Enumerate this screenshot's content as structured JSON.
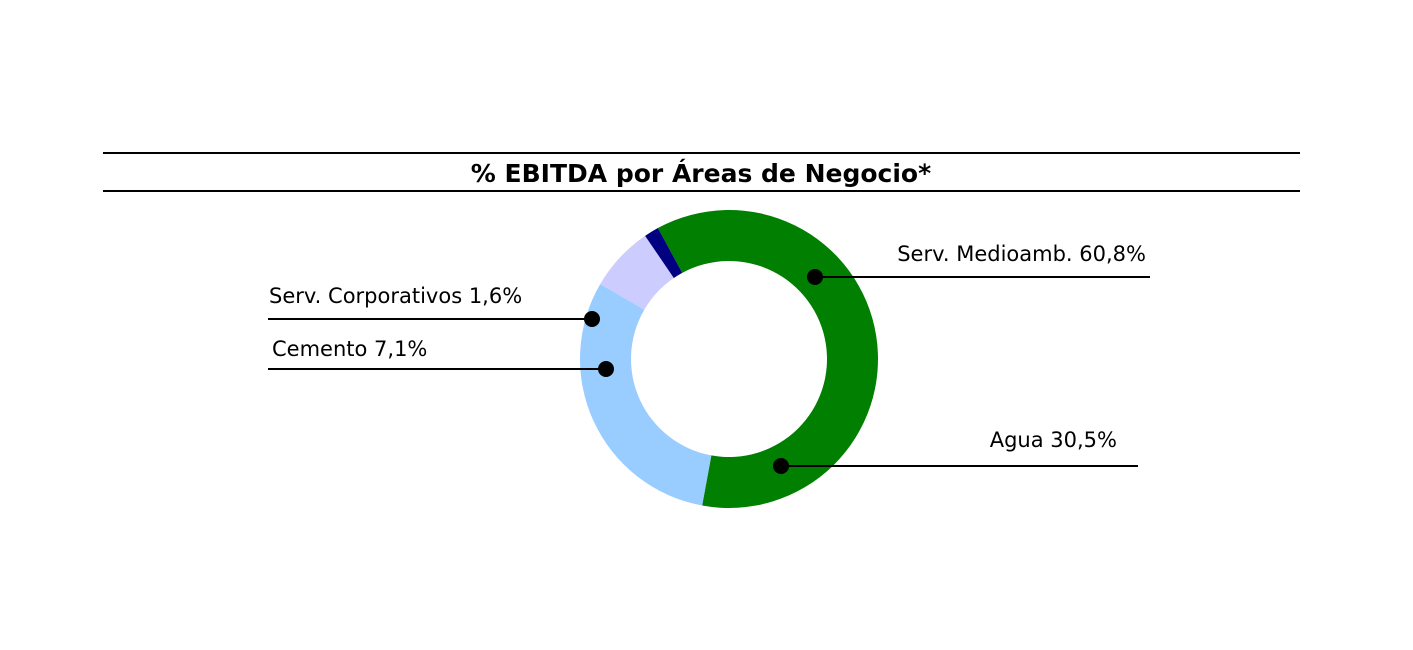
{
  "chart_data": {
    "type": "pie",
    "title": "% EBITDA por Áreas de Negocio*",
    "variant": "donut",
    "start_angle_deg": -118.5,
    "direction": "clockwise",
    "slices": [
      {
        "label": "Serv. Medioamb.",
        "value": 60.8,
        "display": "Serv. Medioamb. 60,8%",
        "color": "#007f00"
      },
      {
        "label": "Agua",
        "value": 30.5,
        "display": "Agua 30,5%",
        "color": "#99ccff"
      },
      {
        "label": "Cemento",
        "value": 7.1,
        "display": "Cemento 7,1%",
        "color": "#ccccff"
      },
      {
        "label": "Serv. Corporativos",
        "value": 1.6,
        "display": "Serv. Corporativos 1,6%",
        "color": "#000080"
      }
    ]
  }
}
